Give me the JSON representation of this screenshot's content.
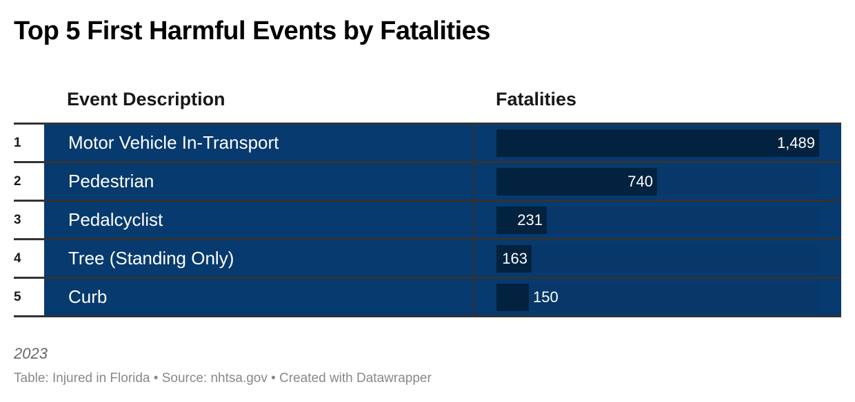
{
  "chart_data": {
    "type": "table",
    "title": "Top 5 First Harmful Events by Fatalities",
    "columns": [
      "Event Description",
      "Fatalities"
    ],
    "rows": [
      {
        "rank": "1",
        "description": "Motor Vehicle In-Transport",
        "fatalities": 1489,
        "label": "1,489"
      },
      {
        "rank": "2",
        "description": "Pedestrian",
        "fatalities": 740,
        "label": "740"
      },
      {
        "rank": "3",
        "description": "Pedalcyclist",
        "fatalities": 231,
        "label": "231"
      },
      {
        "rank": "4",
        "description": "Tree (Standing Only)",
        "fatalities": 163,
        "label": "163"
      },
      {
        "rank": "5",
        "description": "Curb",
        "fatalities": 150,
        "label": "150"
      }
    ],
    "bar_max": 1489,
    "notes": "2023",
    "footer": "Table: Injured in Florida • Source: nhtsa.gov • Created with Datawrapper"
  },
  "colors": {
    "row_background": "#073a6e",
    "bar_fill": "#03223f",
    "bar_track": "#073869",
    "border": "#333333"
  }
}
